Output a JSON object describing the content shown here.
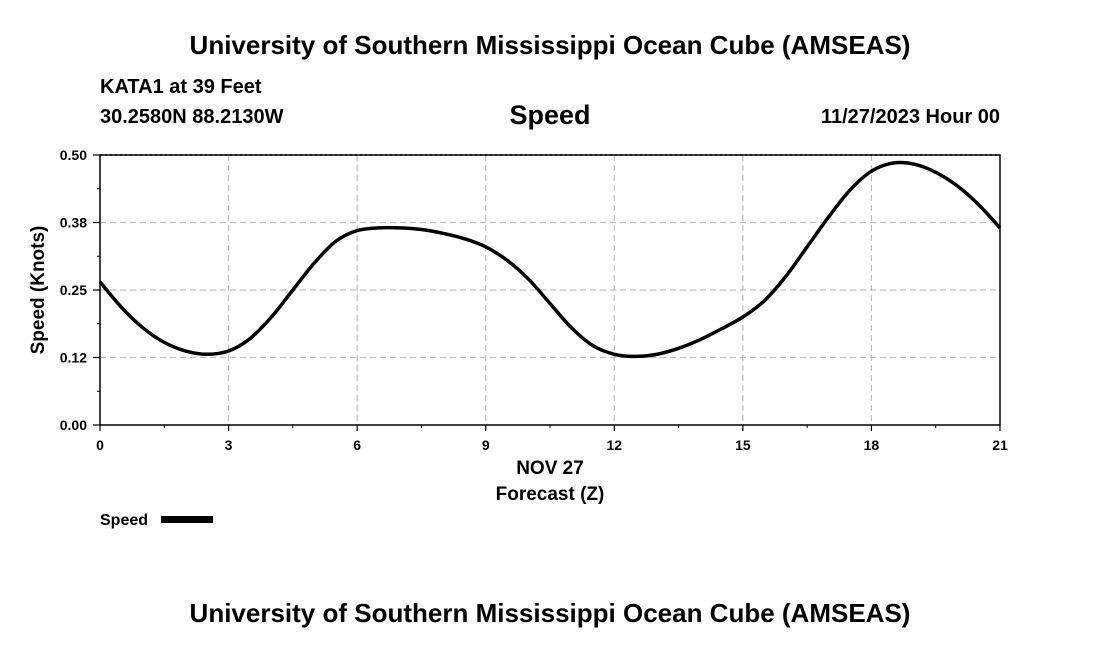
{
  "header": {
    "title": "University of Southern Mississippi Ocean Cube (AMSEAS)",
    "station": "KATA1 at 39 Feet",
    "coords": "30.2580N  88.2130W",
    "variable": "Speed",
    "datetime": "11/27/2023 Hour 00"
  },
  "footer": {
    "title": "University of Southern Mississippi Ocean Cube (AMSEAS)"
  },
  "chart_data": {
    "type": "line",
    "title": "Speed",
    "xlabel": "Forecast (Z)",
    "xlabel_date": "NOV 27",
    "ylabel": "Speed (Knots)",
    "xlim": [
      0,
      21
    ],
    "ylim": [
      0,
      0.5
    ],
    "x_ticks": [
      0,
      3,
      6,
      9,
      12,
      15,
      18,
      21
    ],
    "x_tick_labels": [
      "0",
      "3",
      "6",
      "9",
      "12",
      "15",
      "18",
      "21"
    ],
    "y_ticks": [
      0,
      0.125,
      0.25,
      0.375,
      0.5
    ],
    "y_tick_labels": [
      "0.00",
      "0.12",
      "0.25",
      "0.38",
      "0.50"
    ],
    "grid": true,
    "legend": "bottom-left",
    "series": [
      {
        "name": "Speed",
        "color": "#000000",
        "x": [
          0,
          0.5,
          1,
          1.5,
          2,
          2.5,
          3,
          3.5,
          4,
          4.5,
          5,
          5.5,
          6,
          6.5,
          7,
          7.5,
          8,
          8.5,
          9,
          9.5,
          10,
          10.5,
          11,
          11.5,
          12,
          12.5,
          13,
          13.5,
          14,
          14.5,
          15,
          15.5,
          16,
          16.5,
          17,
          17.5,
          18,
          18.5,
          19,
          19.5,
          20,
          20.5,
          21
        ],
        "values": [
          0.265,
          0.218,
          0.18,
          0.153,
          0.137,
          0.131,
          0.137,
          0.16,
          0.2,
          0.25,
          0.3,
          0.34,
          0.36,
          0.365,
          0.365,
          0.362,
          0.355,
          0.345,
          0.33,
          0.305,
          0.27,
          0.225,
          0.18,
          0.147,
          0.131,
          0.127,
          0.131,
          0.142,
          0.158,
          0.178,
          0.2,
          0.23,
          0.275,
          0.33,
          0.385,
          0.435,
          0.47,
          0.485,
          0.483,
          0.468,
          0.443,
          0.408,
          0.365
        ]
      }
    ]
  }
}
